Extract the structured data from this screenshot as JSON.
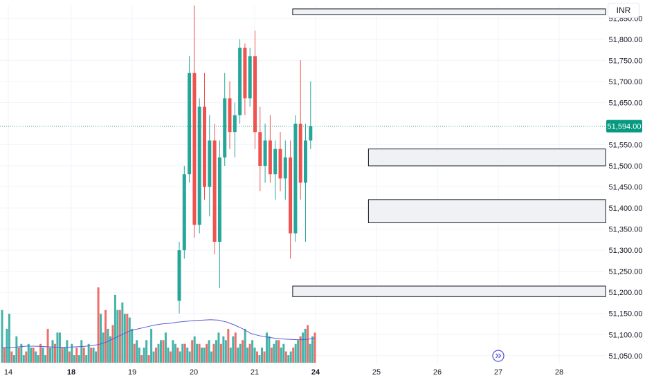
{
  "instrument": {
    "currency": "INR"
  },
  "price_axis": {
    "ticks": [
      "51,850.00",
      "51,800.00",
      "51,750.00",
      "51,700.00",
      "51,650.00",
      "51,550.00",
      "51,500.00",
      "51,450.00",
      "51,400.00",
      "51,350.00",
      "51,300.00",
      "51,250.00",
      "51,200.00",
      "51,150.00",
      "51,100.00",
      "51,050.00"
    ],
    "tick_values": [
      51850,
      51800,
      51750,
      51700,
      51650,
      51550,
      51500,
      51450,
      51400,
      51350,
      51300,
      51250,
      51200,
      51150,
      51100,
      51050
    ],
    "last_price_label": "51,594.00",
    "last_price": 51594
  },
  "time_axis": {
    "labels": [
      {
        "text": "14",
        "bold": false,
        "slot": 0
      },
      {
        "text": "18",
        "bold": true,
        "slot": 1
      },
      {
        "text": "19",
        "bold": false,
        "slot": 2
      },
      {
        "text": "20",
        "bold": false,
        "slot": 3
      },
      {
        "text": "21",
        "bold": false,
        "slot": 4
      },
      {
        "text": "24",
        "bold": true,
        "slot": 5
      },
      {
        "text": "25",
        "bold": false,
        "slot": 6
      },
      {
        "text": "26",
        "bold": false,
        "slot": 7
      },
      {
        "text": "27",
        "bold": false,
        "slot": 8
      },
      {
        "text": "28",
        "bold": false,
        "slot": 9
      }
    ]
  },
  "colors": {
    "up": "#26a69a",
    "down": "#ef5350",
    "volume_ma": "#5b5bd6",
    "zone_fill": "#f0f1f4",
    "zone_border": "#131722",
    "last_price_badge": "#089981",
    "grid": "#f0f3fa"
  },
  "chart_data": {
    "type": "candlestick",
    "ylim": [
      51030,
      51880
    ],
    "zones": [
      {
        "top": 51872,
        "bottom": 51858,
        "from_bar": 23
      },
      {
        "top": 51540,
        "bottom": 51500,
        "from_bar": 38
      },
      {
        "top": 51420,
        "bottom": 51365,
        "from_bar": 38
      },
      {
        "top": 51215,
        "bottom": 51190,
        "from_bar": 23
      }
    ],
    "candles": [
      [
        51180,
        51320,
        51150,
        51300
      ],
      [
        51300,
        51500,
        51280,
        51480
      ],
      [
        51480,
        51760,
        51460,
        51720
      ],
      [
        51720,
        51880,
        51330,
        51360
      ],
      [
        51360,
        51660,
        51340,
        51640
      ],
      [
        51640,
        51720,
        51420,
        51450
      ],
      [
        51450,
        51620,
        51380,
        51560
      ],
      [
        51560,
        51600,
        51290,
        51320
      ],
      [
        51320,
        51560,
        51210,
        51520
      ],
      [
        51520,
        51720,
        51500,
        51660
      ],
      [
        51660,
        51700,
        51540,
        51580
      ],
      [
        51580,
        51650,
        51520,
        51620
      ],
      [
        51620,
        51800,
        51600,
        51780
      ],
      [
        51780,
        51790,
        51620,
        51660
      ],
      [
        51660,
        51780,
        51640,
        51760
      ],
      [
        51760,
        51820,
        51540,
        51580
      ],
      [
        51580,
        51640,
        51440,
        51500
      ],
      [
        51500,
        51600,
        51460,
        51560
      ],
      [
        51560,
        51620,
        51460,
        51480
      ],
      [
        51480,
        51560,
        51420,
        51540
      ],
      [
        51540,
        51580,
        51440,
        51470
      ],
      [
        51470,
        51560,
        51420,
        51520
      ],
      [
        51520,
        51560,
        51280,
        51340
      ],
      [
        51340,
        51620,
        51320,
        51600
      ],
      [
        51600,
        51750,
        51420,
        51460
      ],
      [
        51460,
        51600,
        51320,
        51560
      ],
      [
        51560,
        51700,
        51540,
        51594
      ]
    ],
    "volumes": [
      14,
      4,
      9,
      13,
      3,
      2,
      7,
      4,
      5,
      2,
      3,
      5,
      4,
      4,
      3,
      2,
      5,
      4,
      2,
      9,
      4,
      6,
      5,
      8,
      8,
      4,
      4,
      6,
      3,
      5,
      2,
      4,
      2,
      6,
      4,
      2,
      5,
      4,
      4,
      3,
      20,
      13,
      8,
      14,
      9,
      7,
      10,
      18,
      14,
      14,
      16,
      13,
      13,
      12,
      9,
      5,
      6,
      4,
      2,
      4,
      6,
      2,
      9,
      3,
      4,
      5,
      6,
      6,
      8,
      4,
      3,
      6,
      5,
      4,
      3,
      5,
      5,
      4,
      3,
      6,
      7,
      5,
      5,
      4,
      4,
      5,
      6,
      3,
      5,
      6,
      8,
      5,
      7,
      6,
      9,
      4,
      7,
      8,
      4,
      5,
      6,
      9,
      4,
      5,
      6,
      4,
      3,
      2,
      4,
      3,
      8,
      7,
      4,
      5,
      6,
      6,
      4,
      5,
      3,
      2,
      3,
      4,
      5,
      6,
      7,
      8,
      9,
      10,
      5,
      7,
      8
    ],
    "volume_ma": [
      4,
      4,
      4.2,
      4.4,
      4.4,
      4.3,
      4.2,
      4.1,
      4.1,
      4.2,
      4.3,
      4.5,
      4.8,
      5.5,
      6.5,
      7.5,
      8.5,
      9,
      9.5,
      10,
      10.3,
      10.5,
      10.8,
      11,
      11.2,
      11.3,
      11.4,
      11.3,
      10.8,
      10,
      9,
      7.8,
      7.2,
      6.8,
      6.5,
      6.3,
      6.2,
      6.1,
      6.2,
      6.5
    ]
  }
}
